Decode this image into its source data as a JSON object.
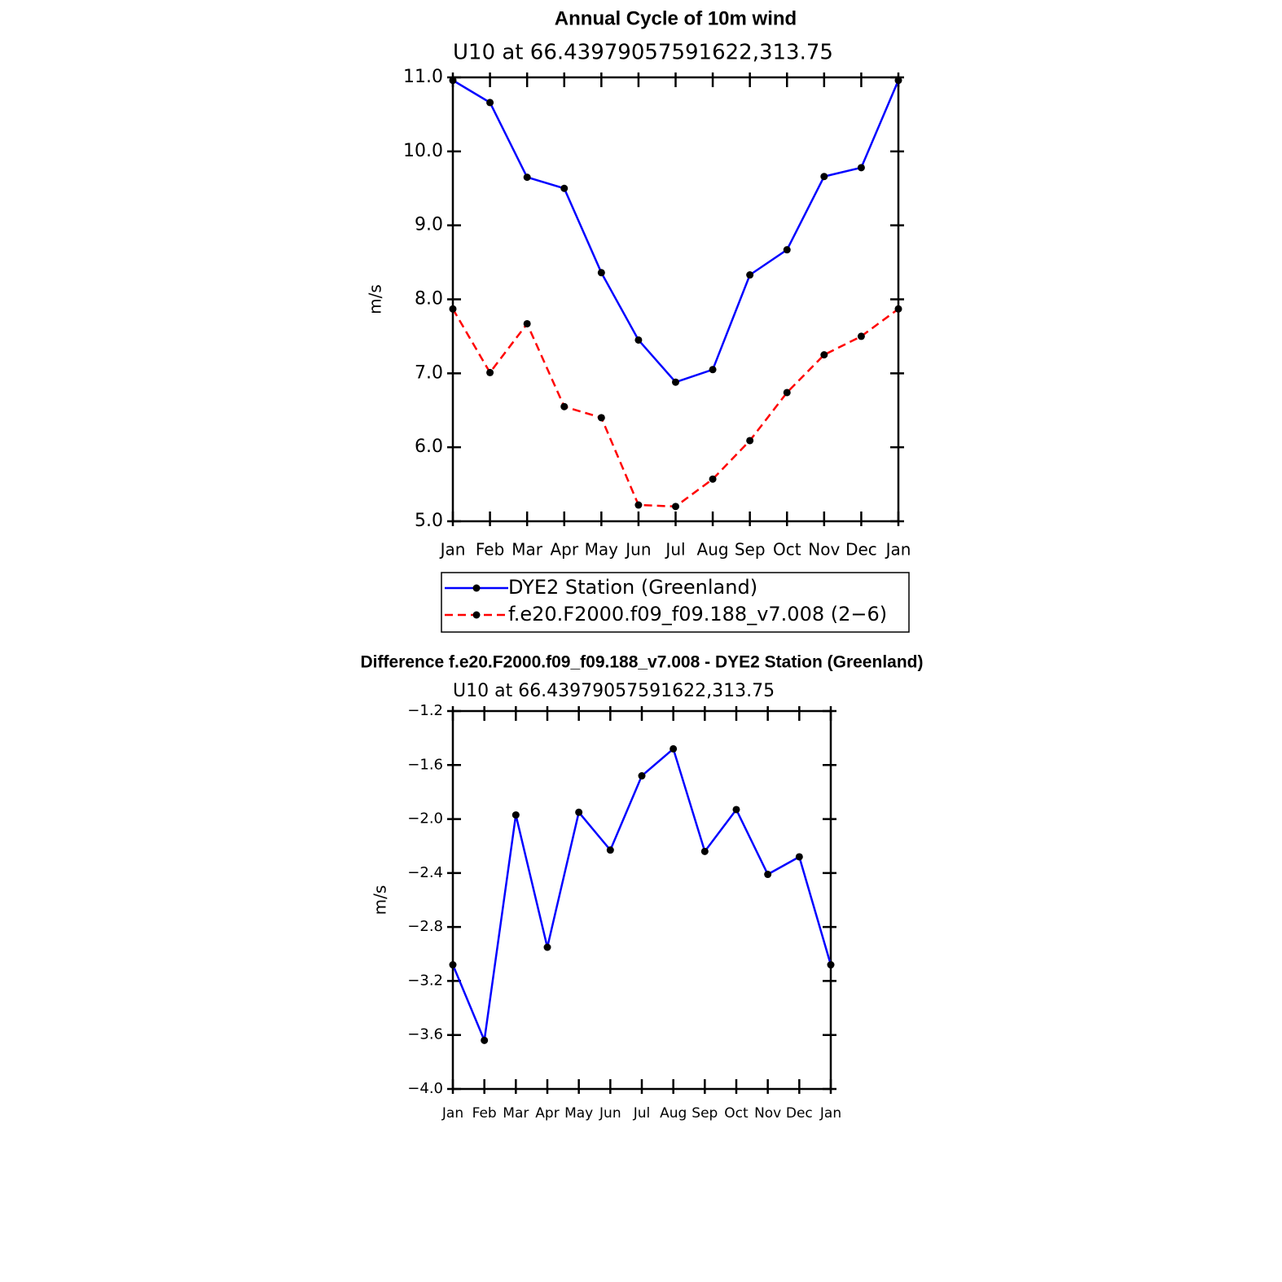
{
  "chart_data": [
    {
      "type": "line",
      "title": "Annual Cycle of 10m wind",
      "subtitle": "U10  at 66.43979057591622,313.75",
      "ylabel": "m/s",
      "categories": [
        "Jan",
        "Feb",
        "Mar",
        "Apr",
        "May",
        "Jun",
        "Jul",
        "Aug",
        "Sep",
        "Oct",
        "Nov",
        "Dec",
        "Jan"
      ],
      "series": [
        {
          "name": "DYE2 Station (Greenland)",
          "color": "#0000ff",
          "dash": "solid",
          "values": [
            10.96,
            10.66,
            9.65,
            9.5,
            8.36,
            7.45,
            6.88,
            7.05,
            8.33,
            8.67,
            9.66,
            9.78,
            10.96
          ]
        },
        {
          "name": "f.e20.F2000.f09_f09.188_v7.008 (2−6)",
          "color": "#ff0000",
          "dash": "dashed",
          "values": [
            7.87,
            7.01,
            7.67,
            6.55,
            6.4,
            5.22,
            5.2,
            5.57,
            6.09,
            6.74,
            7.25,
            7.5,
            7.87
          ]
        }
      ],
      "ylim": [
        5,
        11
      ],
      "yticks": [
        {
          "value": 5,
          "label": "5.0"
        },
        {
          "value": 6,
          "label": "6.0"
        },
        {
          "value": 7,
          "label": "7.0"
        },
        {
          "value": 8,
          "label": "8.0"
        },
        {
          "value": 9,
          "label": "9.0"
        },
        {
          "value": 10,
          "label": "10.0"
        },
        {
          "value": 11,
          "label": "11.0"
        }
      ]
    },
    {
      "type": "line",
      "title": "Difference f.e20.F2000.f09_f09.188_v7.008 - DYE2 Station (Greenland)",
      "subtitle": "U10  at 66.43979057591622,313.75",
      "ylabel": "m/s",
      "categories": [
        "Jan",
        "Feb",
        "Mar",
        "Apr",
        "May",
        "Jun",
        "Jul",
        "Aug",
        "Sep",
        "Oct",
        "Nov",
        "Dec",
        "Jan"
      ],
      "values": [
        -3.08,
        -3.64,
        -1.97,
        -2.95,
        -1.95,
        -2.23,
        -1.68,
        -1.48,
        -2.24,
        -1.93,
        -2.41,
        -2.28,
        -3.08
      ],
      "color": "#0000ff",
      "ylim": [
        -4.0,
        -1.2
      ],
      "yticks": [
        {
          "value": -4.0,
          "label": "−4.0"
        },
        {
          "value": -3.6,
          "label": "−3.6"
        },
        {
          "value": -3.2,
          "label": "−3.2"
        },
        {
          "value": -2.8,
          "label": "−2.8"
        },
        {
          "value": -2.4,
          "label": "−2.4"
        },
        {
          "value": -2.0,
          "label": "−2.0"
        },
        {
          "value": -1.6,
          "label": "−1.6"
        },
        {
          "value": -1.2,
          "label": "−1.2"
        }
      ]
    }
  ]
}
